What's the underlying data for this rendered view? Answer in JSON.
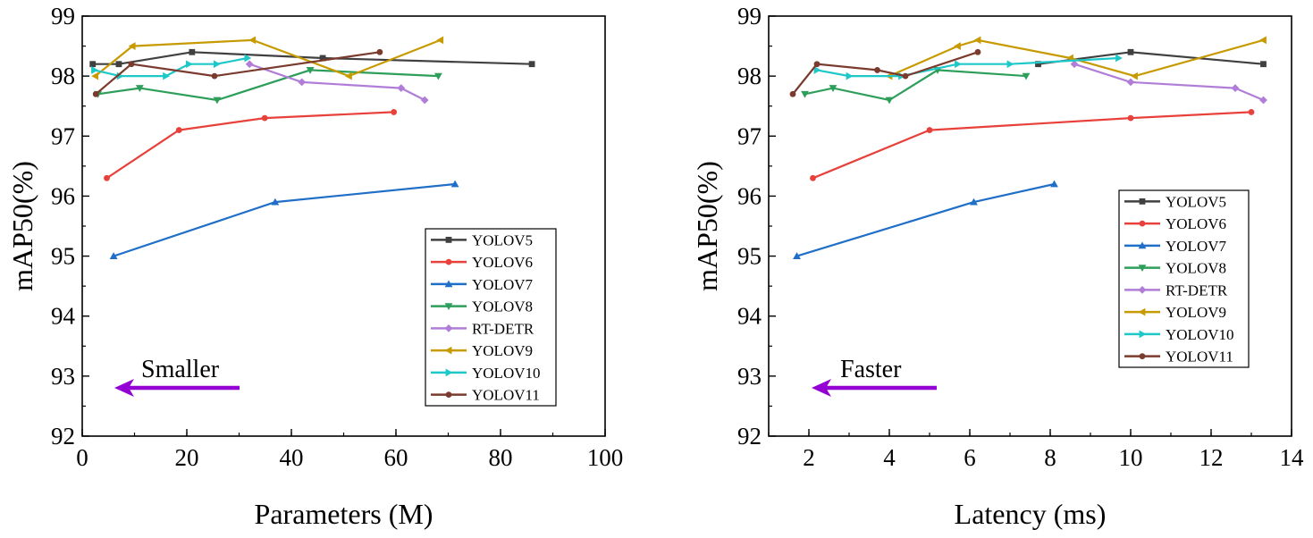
{
  "chart_data": [
    {
      "type": "line",
      "xlabel": "Parameters (M)",
      "ylabel": "mAP50(%)",
      "xlim": [
        0,
        100
      ],
      "ylim": [
        92,
        99
      ],
      "xticks": [
        "0",
        "20",
        "40",
        "60",
        "80",
        "100"
      ],
      "yticks": [
        "92",
        "93",
        "94",
        "95",
        "96",
        "97",
        "98",
        "99"
      ],
      "legend_position": "bottom-right",
      "annotation": {
        "text": "Smaller",
        "arrow": "left",
        "color": "#9400D3"
      },
      "series": [
        {
          "name": "YOLOV5",
          "color": "#404040",
          "marker": "square",
          "points": [
            [
              2,
              98.2
            ],
            [
              7,
              98.2
            ],
            [
              21,
              98.4
            ],
            [
              46,
              98.3
            ],
            [
              86,
              98.2
            ]
          ]
        },
        {
          "name": "YOLOV6",
          "color": "#E8403A",
          "marker": "circle",
          "points": [
            [
              4.7,
              96.3
            ],
            [
              18.5,
              97.1
            ],
            [
              34.9,
              97.3
            ],
            [
              59.6,
              97.4
            ]
          ]
        },
        {
          "name": "YOLOV7",
          "color": "#1F6FC8",
          "marker": "triangle-up",
          "points": [
            [
              6,
              95.0
            ],
            [
              36.9,
              95.9
            ],
            [
              71.3,
              96.2
            ]
          ]
        },
        {
          "name": "YOLOV8",
          "color": "#2E9E5B",
          "marker": "triangle-down",
          "points": [
            [
              3,
              97.7
            ],
            [
              11,
              97.8
            ],
            [
              25.8,
              97.6
            ],
            [
              43.6,
              98.1
            ],
            [
              68.1,
              98.0
            ]
          ]
        },
        {
          "name": "RT-DETR",
          "color": "#B07ED8",
          "marker": "diamond",
          "points": [
            [
              32,
              98.2
            ],
            [
              42,
              97.9
            ],
            [
              61,
              97.8
            ],
            [
              65.5,
              97.6
            ]
          ]
        },
        {
          "name": "YOLOV9",
          "color": "#C79A00",
          "marker": "triangle-left",
          "points": [
            [
              2.5,
              98.0
            ],
            [
              9.6,
              98.5
            ],
            [
              32.6,
              98.6
            ],
            [
              51,
              98.0
            ],
            [
              68.5,
              98.6
            ]
          ]
        },
        {
          "name": "YOLOV10",
          "color": "#1EC8C8",
          "marker": "triangle-right",
          "points": [
            [
              2.3,
              98.1
            ],
            [
              7.2,
              98.0
            ],
            [
              16,
              98.0
            ],
            [
              20.4,
              98.2
            ],
            [
              25.7,
              98.2
            ],
            [
              31.6,
              98.3
            ]
          ]
        },
        {
          "name": "YOLOV11",
          "color": "#7A3B2E",
          "marker": "circle",
          "points": [
            [
              2.6,
              97.7
            ],
            [
              9.4,
              98.2
            ],
            [
              25.3,
              98.0
            ],
            [
              56.9,
              98.4
            ]
          ]
        }
      ]
    },
    {
      "type": "line",
      "xlabel": "Latency (ms)",
      "ylabel": "mAP50(%)",
      "xlim": [
        1,
        14
      ],
      "ylim": [
        92,
        99
      ],
      "xticks": [
        "2",
        "4",
        "6",
        "8",
        "10",
        "12",
        "14"
      ],
      "yticks": [
        "92",
        "93",
        "94",
        "95",
        "96",
        "97",
        "98",
        "99"
      ],
      "legend_position": "right",
      "annotation": {
        "text": "Faster",
        "arrow": "left",
        "color": "#9400D3"
      },
      "series": [
        {
          "name": "YOLOV5",
          "color": "#404040",
          "marker": "square",
          "points": [
            [
              7.7,
              98.2
            ],
            [
              10,
              98.4
            ],
            [
              13.3,
              98.2
            ]
          ]
        },
        {
          "name": "YOLOV6",
          "color": "#E8403A",
          "marker": "circle",
          "points": [
            [
              2.1,
              96.3
            ],
            [
              5,
              97.1
            ],
            [
              10,
              97.3
            ],
            [
              13,
              97.4
            ]
          ]
        },
        {
          "name": "YOLOV7",
          "color": "#1F6FC8",
          "marker": "triangle-up",
          "points": [
            [
              1.7,
              95.0
            ],
            [
              6.1,
              95.9
            ],
            [
              8.1,
              96.2
            ]
          ]
        },
        {
          "name": "YOLOV8",
          "color": "#2E9E5B",
          "marker": "triangle-down",
          "points": [
            [
              1.9,
              97.7
            ],
            [
              2.6,
              97.8
            ],
            [
              4,
              97.6
            ],
            [
              5.2,
              98.1
            ],
            [
              7.4,
              98.0
            ]
          ]
        },
        {
          "name": "RT-DETR",
          "color": "#B07ED8",
          "marker": "diamond",
          "points": [
            [
              8.6,
              98.2
            ],
            [
              10,
              97.9
            ],
            [
              12.6,
              97.8
            ],
            [
              13.3,
              97.6
            ]
          ]
        },
        {
          "name": "YOLOV9",
          "color": "#C79A00",
          "marker": "triangle-left",
          "points": [
            [
              4,
              98.0
            ],
            [
              5.7,
              98.5
            ],
            [
              6.2,
              98.6
            ],
            [
              8.5,
              98.3
            ],
            [
              10.1,
              98.0
            ],
            [
              13.3,
              98.6
            ]
          ]
        },
        {
          "name": "YOLOV10",
          "color": "#1EC8C8",
          "marker": "triangle-right",
          "points": [
            [
              2.2,
              98.1
            ],
            [
              3,
              98.0
            ],
            [
              4.3,
              98.0
            ],
            [
              5.7,
              98.2
            ],
            [
              7,
              98.2
            ],
            [
              9.7,
              98.3
            ]
          ]
        },
        {
          "name": "YOLOV11",
          "color": "#7A3B2E",
          "marker": "circle",
          "points": [
            [
              1.6,
              97.7
            ],
            [
              2.2,
              98.2
            ],
            [
              3.7,
              98.1
            ],
            [
              4.4,
              98.0
            ],
            [
              6.2,
              98.4
            ]
          ]
        }
      ]
    }
  ]
}
